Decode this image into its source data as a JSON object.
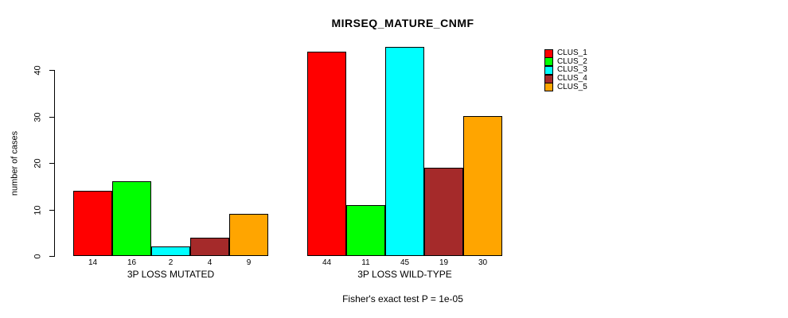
{
  "chart_data": {
    "type": "bar",
    "title": "MIRSEQ_MATURE_CNMF",
    "ylabel": "number of cases",
    "xlabel": "",
    "ylim": [
      0,
      45.5
    ],
    "yticks": [
      0,
      10,
      20,
      30,
      40
    ],
    "grid": false,
    "legend_position": "right",
    "categories": [
      "3P LOSS MUTATED",
      "3P LOSS WILD-TYPE"
    ],
    "series": [
      {
        "name": "CLUS_1",
        "color": "#FF0000",
        "values": [
          14,
          44
        ]
      },
      {
        "name": "CLUS_2",
        "color": "#00FF00",
        "values": [
          16,
          11
        ]
      },
      {
        "name": "CLUS_3",
        "color": "#00FFFF",
        "values": [
          2,
          45
        ]
      },
      {
        "name": "CLUS_4",
        "color": "#A52A2A",
        "values": [
          4,
          19
        ]
      },
      {
        "name": "CLUS_5",
        "color": "#FFA500",
        "values": [
          9,
          30
        ]
      }
    ],
    "bar_value_labels": [
      [
        14,
        16,
        2,
        4,
        9
      ],
      [
        44,
        11,
        45,
        19,
        30
      ]
    ],
    "annotation": "Fisher's exact test P = 1e-05"
  }
}
